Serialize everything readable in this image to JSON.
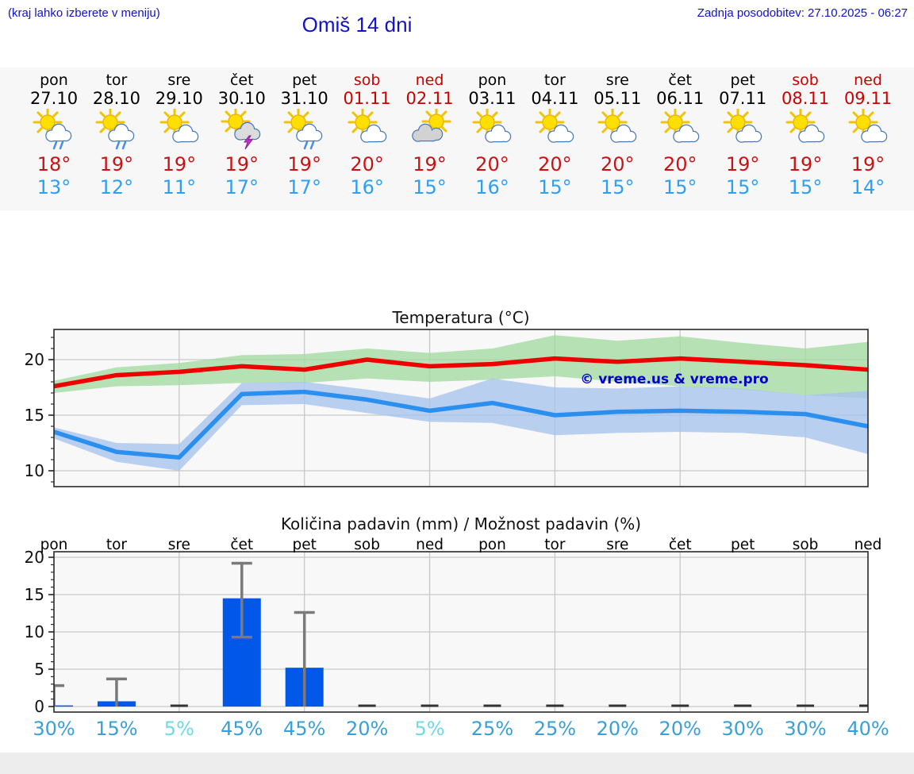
{
  "header": {
    "hint": "(kraj lahko izberete v meniju)",
    "title": "Omiš 14 dni",
    "last_update": "Zadnja posodobitev: 27.10.2025 - 06:27"
  },
  "colors": {
    "header_text": "#1212c8",
    "weekend": "#cc0000",
    "tmax": "#cc1111",
    "tmin": "#2f9ff0",
    "temp_max_line": "#ee0000",
    "temp_min_line": "#2b8ff0",
    "temp_max_band": "#a4dba4",
    "temp_min_band": "#a9c4ee",
    "precip_bar": "#0057e8",
    "error_bar": "#7a7a7a",
    "probability_normal": "#3a9fd5",
    "probability_light": "#6fd9e6",
    "grid": "#c8c8c8",
    "plot_border": "#2a2a2a",
    "plot_bg": "#f8f8f8"
  },
  "days": [
    {
      "name": "pon",
      "date": "27.10",
      "icon": "sun-rain-cloud-icon",
      "tmax": "18°",
      "tmin": "13°",
      "weekend": false
    },
    {
      "name": "tor",
      "date": "28.10",
      "icon": "sun-rain-cloud-icon",
      "tmax": "19°",
      "tmin": "12°",
      "weekend": false
    },
    {
      "name": "sre",
      "date": "29.10",
      "icon": "sun-cloud-icon",
      "tmax": "19°",
      "tmin": "11°",
      "weekend": false
    },
    {
      "name": "čet",
      "date": "30.10",
      "icon": "sun-storm-cloud-icon",
      "tmax": "19°",
      "tmin": "17°",
      "weekend": false
    },
    {
      "name": "pet",
      "date": "31.10",
      "icon": "sun-rain-cloud-icon",
      "tmax": "19°",
      "tmin": "17°",
      "weekend": false
    },
    {
      "name": "sob",
      "date": "01.11",
      "icon": "sun-cloud-icon",
      "tmax": "20°",
      "tmin": "16°",
      "weekend": true
    },
    {
      "name": "ned",
      "date": "02.11",
      "icon": "cloud-sun-icon",
      "tmax": "19°",
      "tmin": "15°",
      "weekend": true
    },
    {
      "name": "pon",
      "date": "03.11",
      "icon": "sun-cloud-icon",
      "tmax": "20°",
      "tmin": "16°",
      "weekend": false
    },
    {
      "name": "tor",
      "date": "04.11",
      "icon": "sun-cloud-icon",
      "tmax": "20°",
      "tmin": "15°",
      "weekend": false
    },
    {
      "name": "sre",
      "date": "05.11",
      "icon": "sun-cloud-icon",
      "tmax": "20°",
      "tmin": "15°",
      "weekend": false
    },
    {
      "name": "čet",
      "date": "06.11",
      "icon": "sun-cloud-icon",
      "tmax": "20°",
      "tmin": "15°",
      "weekend": false
    },
    {
      "name": "pet",
      "date": "07.11",
      "icon": "sun-cloud-icon",
      "tmax": "19°",
      "tmin": "15°",
      "weekend": false
    },
    {
      "name": "sob",
      "date": "08.11",
      "icon": "sun-cloud-icon",
      "tmax": "19°",
      "tmin": "15°",
      "weekend": true
    },
    {
      "name": "ned",
      "date": "09.11",
      "icon": "sun-cloud-icon",
      "tmax": "19°",
      "tmin": "14°",
      "weekend": true
    }
  ],
  "chart_data": [
    {
      "type": "line",
      "title": "Temperatura (°C)",
      "watermark": "© vreme.us & vreme.pro",
      "categories": [
        "pon",
        "tor",
        "sre",
        "čet",
        "pet",
        "sob",
        "ned",
        "pon",
        "tor",
        "sre",
        "čet",
        "pet",
        "sob",
        "ned"
      ],
      "ylim": [
        8.6,
        22.8
      ],
      "yticks": [
        10,
        15,
        20
      ],
      "grid": true,
      "series": [
        {
          "name": "max-temperature",
          "values": [
            17.6,
            18.6,
            18.9,
            19.4,
            19.1,
            20.0,
            19.4,
            19.6,
            20.1,
            19.8,
            20.1,
            19.8,
            19.5,
            19.1
          ]
        },
        {
          "name": "min-temperature",
          "values": [
            13.5,
            11.7,
            11.2,
            16.9,
            17.1,
            16.4,
            15.4,
            16.1,
            15.0,
            15.3,
            15.4,
            15.3,
            15.1,
            14.0
          ]
        }
      ],
      "bands": [
        {
          "name": "max-temperature-range",
          "upper": [
            18.1,
            19.3,
            19.7,
            20.4,
            20.5,
            21.0,
            20.6,
            21.0,
            22.2,
            21.7,
            22.1,
            21.5,
            21.0,
            21.6
          ],
          "lower": [
            17.0,
            17.6,
            17.7,
            17.9,
            17.9,
            18.3,
            18.0,
            18.2,
            18.5,
            18.0,
            17.6,
            17.3,
            16.8,
            16.5
          ]
        },
        {
          "name": "min-temperature-range",
          "upper": [
            13.9,
            12.5,
            12.4,
            17.9,
            18.0,
            17.3,
            16.5,
            18.3,
            17.5,
            17.4,
            17.6,
            17.4,
            16.8,
            17.2
          ],
          "lower": [
            12.9,
            10.8,
            10.0,
            15.9,
            16.0,
            15.2,
            14.4,
            14.3,
            13.2,
            13.4,
            13.5,
            13.4,
            13.0,
            11.5
          ]
        }
      ]
    },
    {
      "type": "bar",
      "title": "Količina padavin (mm) / Možnost padavin (%)",
      "categories": [
        "pon",
        "tor",
        "sre",
        "čet",
        "pet",
        "sob",
        "ned",
        "pon",
        "tor",
        "sre",
        "čet",
        "pet",
        "sob",
        "ned"
      ],
      "values": [
        0.15,
        0.7,
        0,
        14.5,
        5.2,
        0,
        0,
        0,
        0,
        0,
        0,
        0,
        0,
        0
      ],
      "error_high": [
        2.8,
        3.7,
        null,
        19.2,
        12.6,
        null,
        null,
        null,
        null,
        null,
        null,
        null,
        null,
        null
      ],
      "error_low": [
        0,
        0,
        null,
        9.3,
        0,
        null,
        null,
        null,
        null,
        null,
        null,
        null,
        null,
        null
      ],
      "probabilities": [
        "30%",
        "15%",
        "5%",
        "45%",
        "45%",
        "20%",
        "5%",
        "25%",
        "25%",
        "20%",
        "20%",
        "30%",
        "30%",
        "40%"
      ],
      "ylim": [
        0,
        20
      ],
      "yticks": [
        0,
        5,
        10,
        15,
        20
      ],
      "grid": true
    }
  ]
}
